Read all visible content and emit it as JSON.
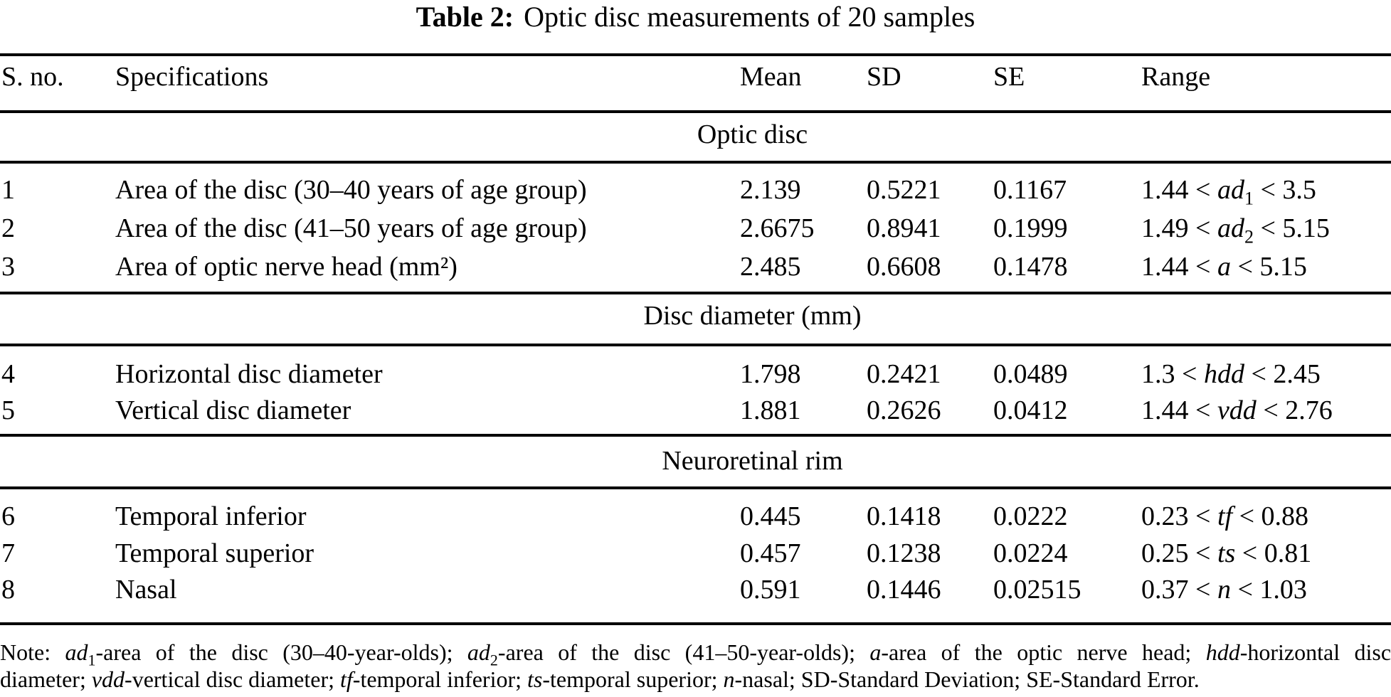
{
  "title": {
    "label": "Table 2:",
    "text": "Optic disc measurements of 20 samples"
  },
  "header": {
    "sno": "S. no.",
    "spec": "Specifications",
    "mean": "Mean",
    "sd": "SD",
    "se": "SE",
    "range": "Range"
  },
  "sections": [
    {
      "heading": "Optic disc"
    },
    {
      "heading": "Disc diameter (mm)"
    },
    {
      "heading": "Neuroretinal rim"
    }
  ],
  "rows": [
    {
      "sno": "1",
      "spec": "Area of the disc (30–40 years of age group)",
      "mean": "2.139",
      "sd": "0.5221",
      "se": "0.1167",
      "range": {
        "pre": "1.44 < ",
        "var": "ad",
        "sub": "1",
        "post": " < 3.5"
      }
    },
    {
      "sno": "2",
      "spec": "Area of the disc (41–50 years of age group)",
      "mean": "2.6675",
      "sd": "0.8941",
      "se": "0.1999",
      "range": {
        "pre": "1.49 < ",
        "var": "ad",
        "sub": "2",
        "post": " < 5.15"
      }
    },
    {
      "sno": "3",
      "spec": "Area of optic nerve head (mm²)",
      "mean": "2.485",
      "sd": "0.6608",
      "se": "0.1478",
      "range": {
        "pre": "1.44 < ",
        "var": "a",
        "sub": "",
        "post": " < 5.15"
      }
    },
    {
      "sno": "4",
      "spec": "Horizontal disc diameter",
      "mean": "1.798",
      "sd": "0.2421",
      "se": "0.0489",
      "range": {
        "pre": "1.3 < ",
        "var": "hdd",
        "sub": "",
        "post": " < 2.45"
      }
    },
    {
      "sno": "5",
      "spec": "Vertical disc diameter",
      "mean": "1.881",
      "sd": "0.2626",
      "se": "0.0412",
      "range": {
        "pre": "1.44 < ",
        "var": "vdd",
        "sub": "",
        "post": " < 2.76"
      }
    },
    {
      "sno": "6",
      "spec": "Temporal inferior",
      "mean": "0.445",
      "sd": "0.1418",
      "se": "0.0222",
      "range": {
        "pre": "0.23 < ",
        "var": "tf",
        "sub": "",
        "post": " < 0.88"
      }
    },
    {
      "sno": "7",
      "spec": "Temporal superior",
      "mean": "0.457",
      "sd": "0.1238",
      "se": "0.0224",
      "range": {
        "pre": "0.25 < ",
        "var": "ts",
        "sub": "",
        "post": " < 0.81"
      }
    },
    {
      "sno": "8",
      "spec": "Nasal",
      "mean": "0.591",
      "sd": "0.1446",
      "se": "0.02515",
      "range": {
        "pre": "0.37 < ",
        "var": "n",
        "sub": "",
        "post": " < 1.03"
      }
    }
  ],
  "note": {
    "line1": [
      {
        "t": "Note: "
      },
      {
        "t": "ad",
        "i": true
      },
      {
        "t": "1",
        "s": true
      },
      {
        "t": "-area of the disc (30–40-year-olds); "
      },
      {
        "t": "ad",
        "i": true
      },
      {
        "t": "2",
        "s": true
      },
      {
        "t": "-area of the disc (41–50-year-olds); "
      },
      {
        "t": "a",
        "i": true
      },
      {
        "t": "-area of the optic nerve head; "
      },
      {
        "t": "hdd",
        "i": true
      },
      {
        "t": "-horizontal disc"
      }
    ],
    "line2": [
      {
        "t": "diameter; "
      },
      {
        "t": "vdd",
        "i": true
      },
      {
        "t": "-vertical disc diameter; "
      },
      {
        "t": "tf",
        "i": true
      },
      {
        "t": "-temporal inferior; "
      },
      {
        "t": "ts",
        "i": true
      },
      {
        "t": "-temporal superior; "
      },
      {
        "t": "n",
        "i": true
      },
      {
        "t": "-nasal; SD-Standard Deviation; SE-Standard Error."
      }
    ]
  }
}
